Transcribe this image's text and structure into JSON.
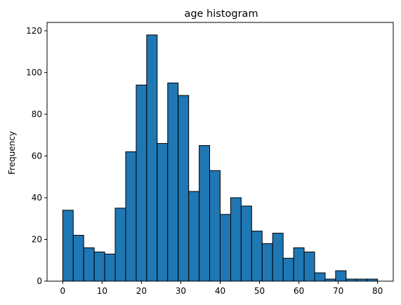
{
  "chart_data": {
    "type": "bar",
    "title": "age histogram",
    "xlabel": "",
    "ylabel": "Frequency",
    "xlim": [
      -3.98,
      83.98
    ],
    "ylim": [
      0,
      124
    ],
    "x_ticks": [
      0,
      10,
      20,
      30,
      40,
      50,
      60,
      70,
      80
    ],
    "y_ticks": [
      0,
      20,
      40,
      60,
      80,
      100,
      120
    ],
    "bin_edges": [
      0.0,
      2.67,
      5.33,
      8.0,
      10.67,
      13.33,
      16.0,
      18.67,
      21.33,
      24.0,
      26.67,
      29.33,
      32.0,
      34.67,
      37.33,
      40.0,
      42.67,
      45.33,
      48.0,
      50.67,
      53.33,
      56.0,
      58.67,
      61.33,
      64.0,
      66.67,
      69.33,
      72.0,
      74.67,
      77.33,
      80.0
    ],
    "counts": [
      34,
      22,
      16,
      14,
      13,
      35,
      62,
      94,
      118,
      66,
      95,
      89,
      43,
      65,
      53,
      32,
      40,
      36,
      24,
      18,
      23,
      11,
      16,
      14,
      4,
      1,
      5,
      1,
      1,
      1
    ],
    "grid": false,
    "colors": {
      "bar": "#1f77b4",
      "edge": "#000000"
    }
  }
}
